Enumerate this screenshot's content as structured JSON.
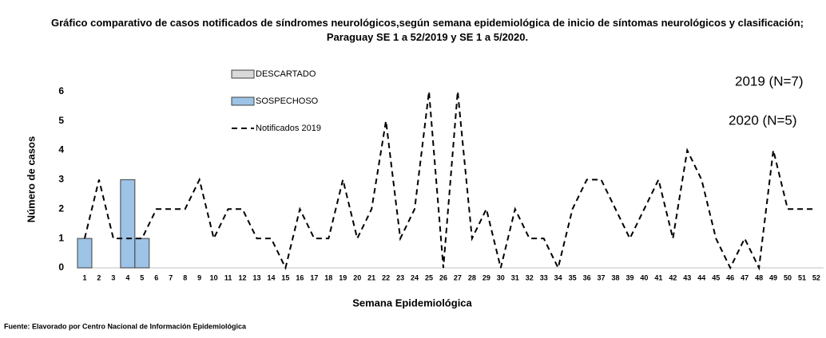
{
  "chart_data": {
    "type": "bar",
    "title": "Gráfico comparativo de casos notificados de síndromes neurológicos,según semana epidemiológica de inicio de síntomas neurológicos y clasificación; Paraguay SE 1 a 52/2019 y SE 1 a  5/2020.",
    "x_label": "Semana Epidemiológica",
    "y_label": "Número de casos",
    "annotations": [
      "2019 (N=7)",
      "2020 (N=5)"
    ],
    "source": "Fuente: Elavorado por Centro Nacional de Información  Epidemiológica",
    "categories": [
      "1",
      "2",
      "3",
      "4",
      "5",
      "6",
      "7",
      "8",
      "9",
      "10",
      "11",
      "12",
      "13",
      "14",
      "15",
      "16",
      "17",
      "18",
      "19",
      "20",
      "21",
      "22",
      "23",
      "24",
      "25",
      "26",
      "27",
      "28",
      "29",
      "30",
      "31",
      "32",
      "33",
      "34",
      "35",
      "36",
      "37",
      "38",
      "39",
      "40",
      "41",
      "42",
      "43",
      "44",
      "45",
      "46",
      "47",
      "48",
      "49",
      "50",
      "51",
      "52"
    ],
    "ylim": [
      0,
      6.4
    ],
    "yticks": [
      0,
      1,
      2,
      3,
      4,
      5,
      6
    ],
    "grid": false,
    "series": [
      {
        "name": "DESCARTADO",
        "type": "bar",
        "color": "#d9d9d9",
        "values": [
          null,
          null,
          null,
          null,
          null,
          null,
          null,
          null,
          null,
          null,
          null,
          null,
          null,
          null,
          null,
          null,
          null,
          null,
          null,
          null,
          null,
          null,
          null,
          null,
          null,
          null,
          null,
          null,
          null,
          null,
          null,
          null,
          null,
          null,
          null,
          null,
          null,
          null,
          null,
          null,
          null,
          null,
          null,
          null,
          null,
          null,
          null,
          null,
          null,
          null,
          null,
          null
        ]
      },
      {
        "name": "SOSPECHOSO",
        "type": "bar",
        "color": "#9dc3e6",
        "values": [
          1,
          null,
          null,
          3,
          1,
          null,
          null,
          null,
          null,
          null,
          null,
          null,
          null,
          null,
          null,
          null,
          null,
          null,
          null,
          null,
          null,
          null,
          null,
          null,
          null,
          null,
          null,
          null,
          null,
          null,
          null,
          null,
          null,
          null,
          null,
          null,
          null,
          null,
          null,
          null,
          null,
          null,
          null,
          null,
          null,
          null,
          null,
          null,
          null,
          null,
          null,
          null
        ]
      },
      {
        "name": "Notificados  2019",
        "type": "line",
        "color": "#000000",
        "values": [
          1,
          3,
          1,
          1,
          1,
          2,
          2,
          2,
          3,
          1,
          2,
          2,
          1,
          1,
          0,
          2,
          1,
          1,
          3,
          1,
          2,
          5,
          1,
          2,
          6,
          0,
          6,
          1,
          2,
          0,
          2,
          1,
          1,
          0,
          2,
          3,
          3,
          2,
          1,
          2,
          3,
          1,
          4,
          3,
          1,
          0,
          1,
          0,
          4,
          2,
          2,
          2
        ]
      }
    ]
  }
}
